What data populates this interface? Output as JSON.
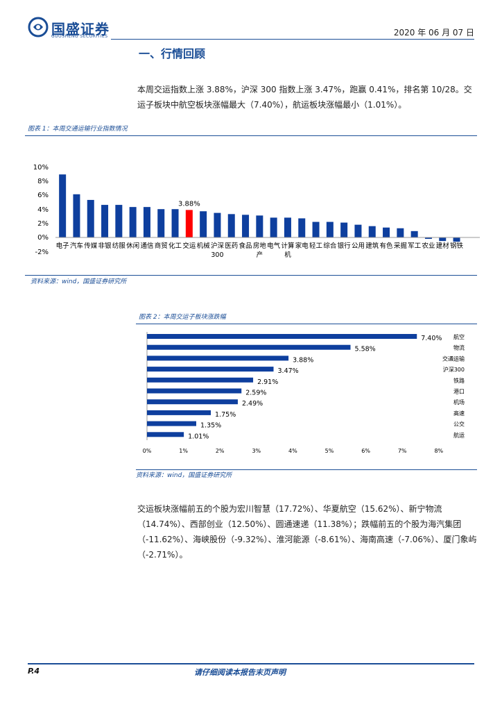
{
  "header": {
    "logo_text": "国盛证券",
    "logo_sub": "GUOSHENG SECURITIES",
    "date": "2020 年 06 月 07 日"
  },
  "section": {
    "title": "一、行情回顾",
    "paragraph": "本周交运指数上涨 3.88%，沪深 300 指数上涨 3.47%，跑赢 0.41%，排名第 10/28。交运子板块中航空板块涨幅最大（7.40%），航运板块涨幅最小（1.01%）。"
  },
  "figure1": {
    "caption": "图表 1：本周交通运输行业指数情况",
    "source": "资料来源：wind，国盛证券研究所"
  },
  "figure2": {
    "caption": "图表 2：本周交运子板块涨跌幅",
    "source": "资料来源：wind，国盛证券研究所"
  },
  "paragraph2": "交运板块涨幅前五的个股为宏川智慧（17.72%）、华夏航空（15.62%）、新宁物流（14.74%）、西部创业（12.50%）、圆通速递（11.38%）；跌幅前五的个股为海汽集团（-11.62%）、海峡股份（-9.32%）、淮河能源（-8.61%）、海南高速（-7.06%）、厦门象屿（-2.71%）。",
  "footer": {
    "page": "P.4",
    "notice": "请仔细阅读本报告末页声明"
  },
  "colors": {
    "brand": "#1a4d96",
    "bar": "#0e3f9e",
    "highlight": "#ff0000"
  },
  "chart_data": [
    {
      "type": "bar",
      "categories": [
        "电子",
        "汽车",
        "传媒",
        "非银",
        "纺服",
        "休闲",
        "通信",
        "商贸",
        "化工",
        "交运",
        "机械",
        "沪深300",
        "医药",
        "食品",
        "房地产",
        "电气",
        "计算机",
        "家电",
        "轻工",
        "综合",
        "银行",
        "公用",
        "建筑",
        "有色",
        "采掘",
        "军工",
        "农业",
        "建材",
        "钢铁"
      ],
      "values": [
        8.9,
        6.1,
        5.3,
        4.6,
        4.6,
        4.3,
        4.3,
        4.0,
        4.0,
        3.88,
        3.7,
        3.47,
        3.3,
        3.2,
        3.1,
        2.8,
        2.8,
        2.7,
        2.2,
        2.2,
        2.1,
        1.8,
        1.6,
        1.4,
        1.3,
        0.9,
        -0.2,
        -0.5,
        -0.6
      ],
      "highlight": "交运",
      "highlight_label": "3.88%",
      "yticks": [
        "10%",
        "8%",
        "6%",
        "4%",
        "2%",
        "0%",
        "-2%"
      ],
      "ylim": [
        -2,
        10
      ]
    },
    {
      "type": "bar",
      "orientation": "horizontal",
      "categories": [
        "航空",
        "物流",
        "交通运输",
        "沪深300",
        "铁路",
        "港口",
        "机场",
        "高速",
        "公交",
        "航运"
      ],
      "values": [
        7.4,
        5.58,
        3.88,
        3.47,
        2.91,
        2.59,
        2.49,
        1.75,
        1.35,
        1.01
      ],
      "labels": [
        "7.40%",
        "5.58%",
        "3.88%",
        "3.47%",
        "2.91%",
        "2.59%",
        "2.49%",
        "1.75%",
        "1.35%",
        "1.01%"
      ],
      "xticks": [
        "0%",
        "1%",
        "2%",
        "3%",
        "4%",
        "5%",
        "6%",
        "7%",
        "8%"
      ],
      "xlim": [
        0,
        8
      ]
    }
  ]
}
